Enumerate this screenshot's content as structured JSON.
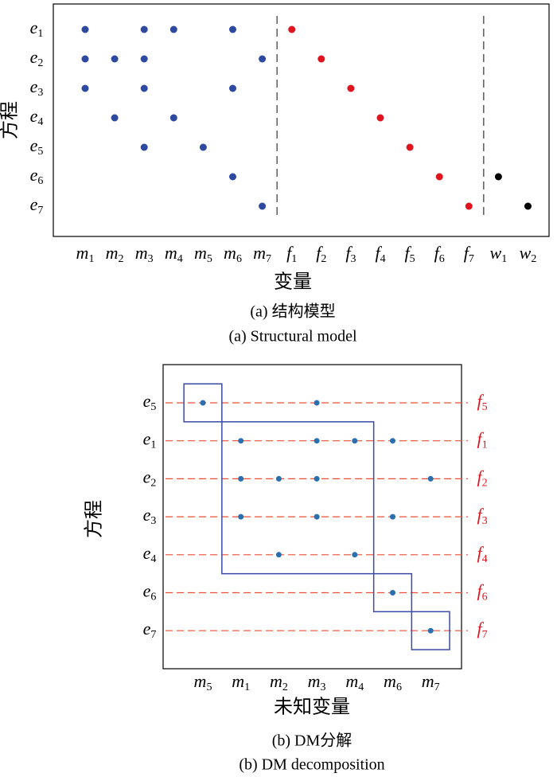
{
  "panel_a": {
    "y_label": "方程",
    "x_label": "变量",
    "caption_cn": "(a) 结构模型",
    "caption_en": "(a) Structural model",
    "rows": [
      {
        "base": "e",
        "sub": "1"
      },
      {
        "base": "e",
        "sub": "2"
      },
      {
        "base": "e",
        "sub": "3"
      },
      {
        "base": "e",
        "sub": "4"
      },
      {
        "base": "e",
        "sub": "5"
      },
      {
        "base": "e",
        "sub": "6"
      },
      {
        "base": "e",
        "sub": "7"
      }
    ],
    "columns": [
      {
        "base": "m",
        "sub": "1",
        "color": "#2e4aa0"
      },
      {
        "base": "m",
        "sub": "2",
        "color": "#2e4aa0"
      },
      {
        "base": "m",
        "sub": "3",
        "color": "#2e4aa0"
      },
      {
        "base": "m",
        "sub": "4",
        "color": "#2e4aa0"
      },
      {
        "base": "m",
        "sub": "5",
        "color": "#2e4aa0"
      },
      {
        "base": "m",
        "sub": "6",
        "color": "#2e4aa0"
      },
      {
        "base": "m",
        "sub": "7",
        "color": "#2e4aa0"
      },
      {
        "base": "f",
        "sub": "1",
        "color": "#e0141e"
      },
      {
        "base": "f",
        "sub": "2",
        "color": "#e0141e"
      },
      {
        "base": "f",
        "sub": "3",
        "color": "#e0141e"
      },
      {
        "base": "f",
        "sub": "4",
        "color": "#e0141e"
      },
      {
        "base": "f",
        "sub": "5",
        "color": "#e0141e"
      },
      {
        "base": "f",
        "sub": "6",
        "color": "#e0141e"
      },
      {
        "base": "f",
        "sub": "7",
        "color": "#e0141e"
      },
      {
        "base": "w",
        "sub": "1",
        "color": "#000000"
      },
      {
        "base": "w",
        "sub": "2",
        "color": "#000000"
      }
    ],
    "cells": [
      [
        0,
        0
      ],
      [
        0,
        2
      ],
      [
        0,
        3
      ],
      [
        0,
        5
      ],
      [
        0,
        7
      ],
      [
        1,
        0
      ],
      [
        1,
        1
      ],
      [
        1,
        2
      ],
      [
        1,
        6
      ],
      [
        1,
        8
      ],
      [
        2,
        0
      ],
      [
        2,
        2
      ],
      [
        2,
        5
      ],
      [
        2,
        9
      ],
      [
        3,
        1
      ],
      [
        3,
        3
      ],
      [
        3,
        10
      ],
      [
        4,
        2
      ],
      [
        4,
        4
      ],
      [
        4,
        11
      ],
      [
        5,
        5
      ],
      [
        5,
        12
      ],
      [
        5,
        14
      ],
      [
        6,
        6
      ],
      [
        6,
        13
      ],
      [
        6,
        15
      ]
    ],
    "dividers": [
      7,
      14
    ]
  },
  "panel_b": {
    "y_label": "方程",
    "x_label": "未知变量",
    "caption_cn": "(b) DM分解",
    "caption_en": "(b) DM decomposition",
    "rows": [
      {
        "base": "e",
        "sub": "5"
      },
      {
        "base": "e",
        "sub": "1"
      },
      {
        "base": "e",
        "sub": "2"
      },
      {
        "base": "e",
        "sub": "3"
      },
      {
        "base": "e",
        "sub": "4"
      },
      {
        "base": "e",
        "sub": "6"
      },
      {
        "base": "e",
        "sub": "7"
      }
    ],
    "row_outputs": [
      {
        "base": "f",
        "sub": "5"
      },
      {
        "base": "f",
        "sub": "1"
      },
      {
        "base": "f",
        "sub": "2"
      },
      {
        "base": "f",
        "sub": "3"
      },
      {
        "base": "f",
        "sub": "4"
      },
      {
        "base": "f",
        "sub": "6"
      },
      {
        "base": "f",
        "sub": "7"
      }
    ],
    "columns": [
      {
        "base": "m",
        "sub": "5"
      },
      {
        "base": "m",
        "sub": "1"
      },
      {
        "base": "m",
        "sub": "2"
      },
      {
        "base": "m",
        "sub": "3"
      },
      {
        "base": "m",
        "sub": "4"
      },
      {
        "base": "m",
        "sub": "6"
      },
      {
        "base": "m",
        "sub": "7"
      }
    ],
    "cells": [
      [
        0,
        0
      ],
      [
        0,
        3
      ],
      [
        1,
        1
      ],
      [
        1,
        3
      ],
      [
        1,
        4
      ],
      [
        1,
        5
      ],
      [
        2,
        1
      ],
      [
        2,
        2
      ],
      [
        2,
        3
      ],
      [
        2,
        6
      ],
      [
        3,
        1
      ],
      [
        3,
        3
      ],
      [
        3,
        5
      ],
      [
        4,
        2
      ],
      [
        4,
        4
      ],
      [
        5,
        5
      ],
      [
        6,
        6
      ]
    ],
    "blocks": [
      [
        0,
        0
      ],
      [
        1,
        4
      ],
      [
        5,
        5
      ],
      [
        6,
        6
      ]
    ],
    "dot_color": "#2a6fb0",
    "line_color": "#e8503a",
    "block_color": "#3a4aa8",
    "output_color": "#e0141e"
  }
}
